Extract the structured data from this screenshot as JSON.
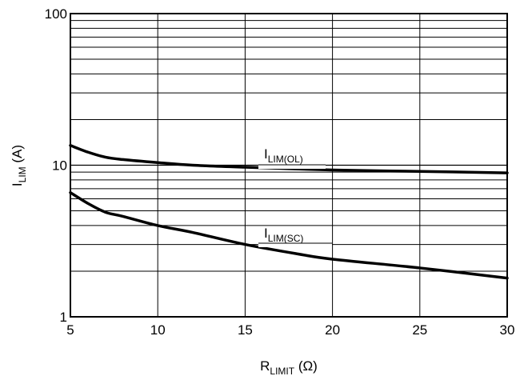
{
  "chart_data": {
    "type": "line",
    "xlabel": {
      "main": "R",
      "sub": "LIMIT",
      "unit": " (Ω)"
    },
    "ylabel": {
      "main": "I",
      "sub": "LIM",
      "unit": " (A)"
    },
    "xlim": [
      5,
      30
    ],
    "ylim": [
      1,
      100
    ],
    "y_scale": "log",
    "grid": true,
    "x_ticks": [
      "5",
      "10",
      "15",
      "20",
      "25",
      "30"
    ],
    "y_ticks": [
      "1",
      "10",
      "100"
    ],
    "series": [
      {
        "name": "I_LIM(OL)",
        "label_main": "I",
        "label_sub": "LIM(OL)",
        "x": [
          5,
          6,
          7,
          8,
          10,
          12,
          15,
          20,
          25,
          30
        ],
        "y": [
          13.5,
          12.2,
          11.3,
          10.9,
          10.4,
          10.0,
          9.7,
          9.3,
          9.1,
          8.9
        ]
      },
      {
        "name": "I_LIM(SC)",
        "label_main": "I",
        "label_sub": "LIM(SC)",
        "x": [
          5,
          6,
          7,
          8,
          10,
          12,
          15,
          18,
          20,
          25,
          30
        ],
        "y": [
          6.6,
          5.6,
          4.9,
          4.6,
          4.0,
          3.6,
          3.0,
          2.6,
          2.4,
          2.1,
          1.8
        ]
      }
    ]
  }
}
